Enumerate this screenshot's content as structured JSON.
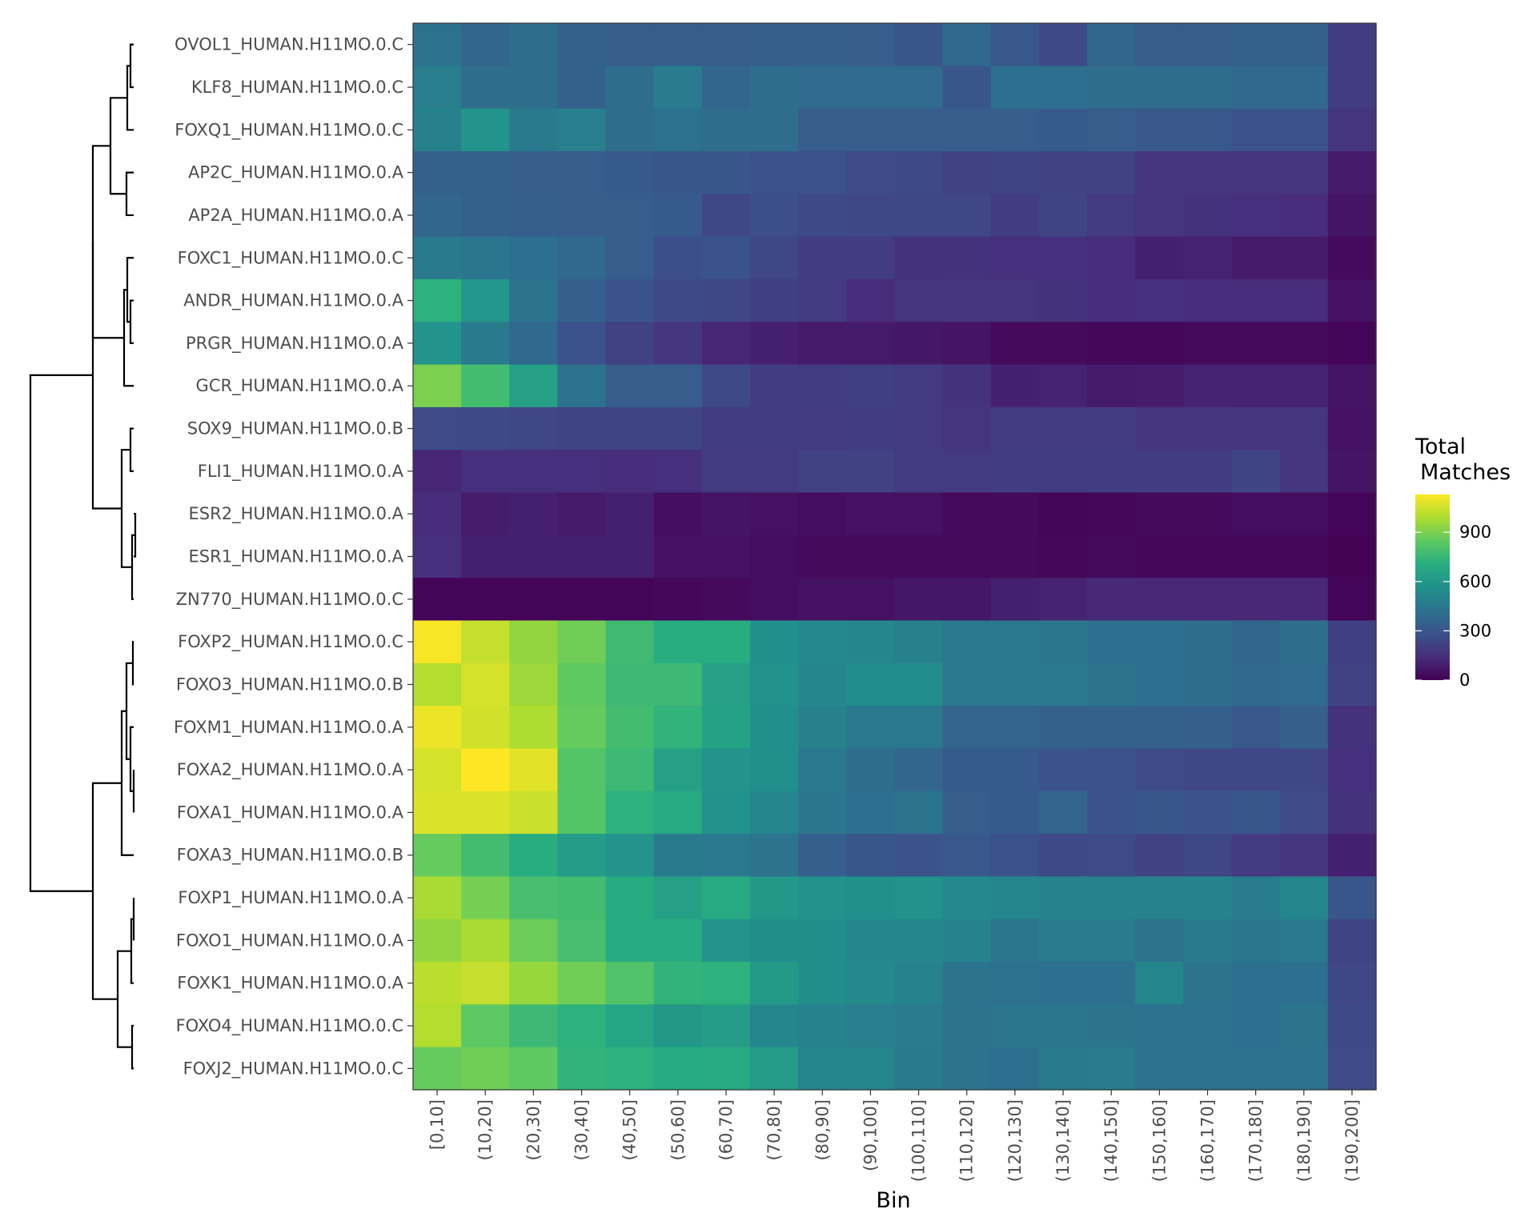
{
  "chart_data": {
    "type": "heatmap",
    "xlabel": "Bin",
    "ylabel": "",
    "color_scale": "viridis",
    "value_range": [
      0,
      1130
    ],
    "legend": {
      "title_line1": "Total",
      "title_line2": "Matches",
      "ticks": [
        0,
        300,
        600,
        900
      ],
      "tick_labels": [
        "0",
        "300",
        "600",
        "900"
      ],
      "position": "right"
    },
    "has_dendrogram": true,
    "categories": [
      "[0,10]",
      "(10,20]",
      "(20,30]",
      "(30,40]",
      "(40,50]",
      "(50,60]",
      "(60,70]",
      "(70,80]",
      "(80,90]",
      "(90,100]",
      "(100,110]",
      "(110,120]",
      "(120,130]",
      "(130,140]",
      "(140,150]",
      "(150,160]",
      "(160,170]",
      "(170,180]",
      "(180,190]",
      "(190,200]"
    ],
    "rows": [
      {
        "name": "OVOL1_HUMAN.H11MO.0.C",
        "values": [
          420,
          370,
          400,
          350,
          330,
          330,
          330,
          340,
          340,
          330,
          300,
          380,
          310,
          250,
          370,
          330,
          330,
          350,
          350,
          200
        ]
      },
      {
        "name": "KLF8_HUMAN.H11MO.0.C",
        "values": [
          480,
          400,
          400,
          350,
          400,
          470,
          370,
          400,
          390,
          390,
          390,
          300,
          410,
          410,
          400,
          400,
          400,
          380,
          380,
          200
        ]
      },
      {
        "name": "FOXQ1_HUMAN.H11MO.0.C",
        "values": [
          490,
          580,
          460,
          480,
          400,
          420,
          400,
          400,
          330,
          330,
          330,
          330,
          330,
          320,
          330,
          310,
          310,
          290,
          290,
          170
        ]
      },
      {
        "name": "AP2C_HUMAN.H11MO.0.A",
        "values": [
          350,
          350,
          330,
          330,
          320,
          300,
          300,
          280,
          280,
          260,
          250,
          220,
          230,
          220,
          220,
          180,
          180,
          170,
          170,
          80
        ]
      },
      {
        "name": "AP2A_HUMAN.H11MO.0.A",
        "values": [
          370,
          350,
          340,
          330,
          330,
          320,
          240,
          270,
          250,
          240,
          240,
          240,
          200,
          230,
          190,
          170,
          160,
          150,
          140,
          60
        ]
      },
      {
        "name": "FOXC1_HUMAN.H11MO.0.C",
        "values": [
          460,
          440,
          410,
          380,
          330,
          270,
          290,
          240,
          200,
          200,
          160,
          160,
          150,
          150,
          140,
          100,
          110,
          80,
          80,
          30
        ]
      },
      {
        "name": "ANDR_HUMAN.H11MO.0.A",
        "values": [
          720,
          590,
          430,
          340,
          290,
          250,
          240,
          210,
          190,
          140,
          170,
          180,
          170,
          160,
          140,
          150,
          140,
          140,
          140,
          50
        ]
      },
      {
        "name": "PRGR_HUMAN.H11MO.0.A",
        "values": [
          580,
          460,
          380,
          280,
          220,
          180,
          120,
          100,
          80,
          80,
          70,
          60,
          30,
          30,
          20,
          20,
          30,
          30,
          30,
          10
        ]
      },
      {
        "name": "GCR_HUMAN.H11MO.0.A",
        "values": [
          900,
          780,
          640,
          420,
          330,
          330,
          250,
          200,
          200,
          210,
          190,
          160,
          100,
          110,
          80,
          90,
          110,
          110,
          110,
          60
        ]
      },
      {
        "name": "SOX9_HUMAN.H11MO.0.B",
        "values": [
          260,
          250,
          240,
          230,
          230,
          230,
          200,
          200,
          190,
          200,
          190,
          170,
          190,
          190,
          190,
          180,
          180,
          170,
          170,
          50
        ]
      },
      {
        "name": "FLI1_HUMAN.H11MO.0.A",
        "values": [
          120,
          150,
          150,
          150,
          140,
          150,
          190,
          190,
          220,
          220,
          190,
          190,
          200,
          200,
          200,
          200,
          200,
          230,
          180,
          60
        ]
      },
      {
        "name": "ESR2_HUMAN.H11MO.0.A",
        "values": [
          140,
          90,
          100,
          80,
          100,
          40,
          60,
          50,
          40,
          50,
          50,
          30,
          30,
          10,
          20,
          30,
          30,
          40,
          40,
          10
        ]
      },
      {
        "name": "ESR1_HUMAN.H11MO.0.A",
        "values": [
          150,
          100,
          100,
          100,
          100,
          50,
          50,
          40,
          30,
          30,
          30,
          30,
          30,
          20,
          30,
          20,
          20,
          20,
          20,
          5
        ]
      },
      {
        "name": "ZN770_HUMAN.H11MO.0.C",
        "values": [
          10,
          10,
          10,
          10,
          10,
          20,
          30,
          40,
          50,
          50,
          70,
          70,
          100,
          110,
          130,
          130,
          130,
          130,
          130,
          10
        ]
      },
      {
        "name": "FOXP2_HUMAN.H11MO.0.C",
        "values": [
          1120,
          1030,
          940,
          880,
          770,
          700,
          700,
          560,
          530,
          520,
          490,
          450,
          450,
          440,
          410,
          410,
          400,
          370,
          400,
          210
        ]
      },
      {
        "name": "FOXO3_HUMAN.H11MO.0.B",
        "values": [
          1000,
          1060,
          960,
          850,
          760,
          760,
          640,
          570,
          520,
          540,
          540,
          450,
          450,
          450,
          430,
          410,
          400,
          380,
          390,
          220
        ]
      },
      {
        "name": "FOXM1_HUMAN.H11MO.0.A",
        "values": [
          1100,
          1050,
          990,
          860,
          780,
          730,
          650,
          560,
          490,
          450,
          450,
          360,
          360,
          350,
          350,
          350,
          340,
          310,
          340,
          160
        ]
      },
      {
        "name": "FOXA2_HUMAN.H11MO.0.A",
        "values": [
          1060,
          1130,
          1080,
          820,
          760,
          640,
          580,
          560,
          450,
          400,
          370,
          320,
          320,
          290,
          280,
          260,
          240,
          240,
          240,
          150
        ]
      },
      {
        "name": "FOXA1_HUMAN.H11MO.0.A",
        "values": [
          1070,
          1070,
          1040,
          820,
          720,
          680,
          570,
          510,
          440,
          410,
          430,
          330,
          320,
          360,
          290,
          300,
          290,
          300,
          260,
          160
        ]
      },
      {
        "name": "FOXA3_HUMAN.H11MO.0.B",
        "values": [
          860,
          780,
          700,
          620,
          580,
          460,
          450,
          430,
          340,
          300,
          290,
          310,
          280,
          250,
          260,
          220,
          240,
          190,
          180,
          100
        ]
      },
      {
        "name": "FOXP1_HUMAN.H11MO.0.A",
        "values": [
          980,
          890,
          790,
          780,
          690,
          640,
          680,
          600,
          570,
          560,
          570,
          530,
          510,
          500,
          500,
          500,
          500,
          470,
          510,
          300
        ]
      },
      {
        "name": "FOXO1_HUMAN.H11MO.0.A",
        "values": [
          940,
          980,
          870,
          790,
          690,
          690,
          580,
          550,
          550,
          520,
          520,
          500,
          440,
          470,
          470,
          430,
          460,
          440,
          450,
          230
        ]
      },
      {
        "name": "FOXK1_HUMAN.H11MO.0.A",
        "values": [
          1010,
          1030,
          950,
          880,
          810,
          730,
          720,
          610,
          550,
          530,
          500,
          430,
          420,
          410,
          410,
          510,
          430,
          410,
          410,
          240
        ]
      },
      {
        "name": "FOXO4_HUMAN.H11MO.0.C",
        "values": [
          1000,
          840,
          760,
          720,
          660,
          600,
          620,
          520,
          500,
          480,
          470,
          430,
          440,
          440,
          430,
          420,
          420,
          410,
          430,
          250
        ]
      },
      {
        "name": "FOXJ2_HUMAN.H11MO.0.C",
        "values": [
          860,
          880,
          850,
          730,
          720,
          690,
          680,
          620,
          510,
          510,
          460,
          430,
          410,
          460,
          470,
          420,
          420,
          420,
          420,
          260
        ]
      }
    ]
  }
}
